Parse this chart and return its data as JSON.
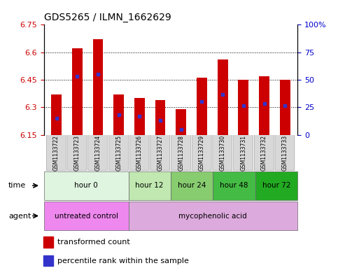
{
  "title": "GDS5265 / ILMN_1662629",
  "samples": [
    "GSM1133722",
    "GSM1133723",
    "GSM1133724",
    "GSM1133725",
    "GSM1133726",
    "GSM1133727",
    "GSM1133728",
    "GSM1133729",
    "GSM1133730",
    "GSM1133731",
    "GSM1133732",
    "GSM1133733"
  ],
  "bar_bottom": 6.15,
  "bar_tops": [
    6.37,
    6.62,
    6.67,
    6.37,
    6.35,
    6.34,
    6.29,
    6.46,
    6.56,
    6.45,
    6.47,
    6.45
  ],
  "blue_dot_values": [
    6.24,
    6.47,
    6.48,
    6.26,
    6.25,
    6.23,
    6.18,
    6.33,
    6.37,
    6.31,
    6.32,
    6.31
  ],
  "ylim": [
    6.15,
    6.75
  ],
  "yticks_left": [
    6.15,
    6.3,
    6.45,
    6.6,
    6.75
  ],
  "yticks_right_labels": [
    "0",
    "25",
    "50",
    "75",
    "100%"
  ],
  "bar_color": "#cc0000",
  "blue_color": "#3333cc",
  "time_groups": [
    {
      "label": "hour 0",
      "start": 0,
      "end": 4,
      "color": "#e0f5e0"
    },
    {
      "label": "hour 12",
      "start": 4,
      "end": 6,
      "color": "#c0e8b0"
    },
    {
      "label": "hour 24",
      "start": 6,
      "end": 8,
      "color": "#88cc70"
    },
    {
      "label": "hour 48",
      "start": 8,
      "end": 10,
      "color": "#44bb44"
    },
    {
      "label": "hour 72",
      "start": 10,
      "end": 12,
      "color": "#22aa22"
    }
  ],
  "agent_groups": [
    {
      "label": "untreated control",
      "start": 0,
      "end": 4,
      "color": "#ee88ee"
    },
    {
      "label": "mycophenolic acid",
      "start": 4,
      "end": 12,
      "color": "#ddaadd"
    }
  ],
  "legend_red": "transformed count",
  "legend_blue": "percentile rank within the sample",
  "left_color": "#cc0000",
  "right_color": "#0000cc",
  "bar_width": 0.5
}
